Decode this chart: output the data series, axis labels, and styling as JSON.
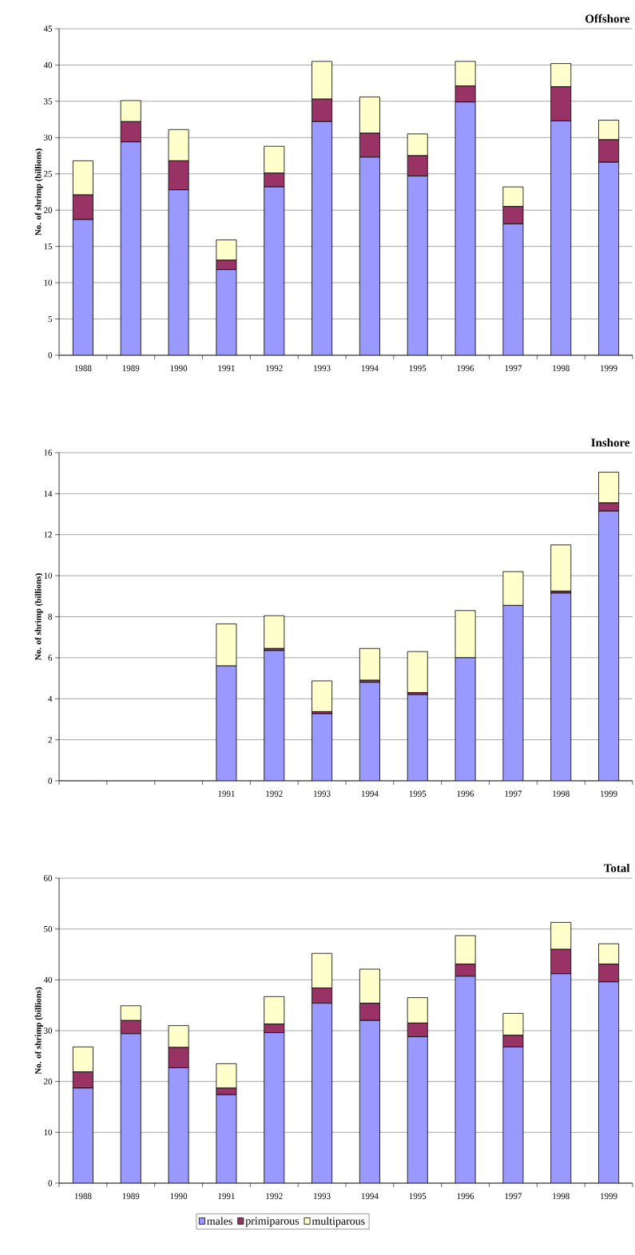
{
  "chart_data": [
    {
      "type": "bar",
      "title": "Offshore",
      "ylabel": "No. of shrimp (billions)",
      "stacked": true,
      "grid": "y",
      "legend": false,
      "categories": [
        "1988",
        "1989",
        "1990",
        "1991",
        "1992",
        "1993",
        "1994",
        "1995",
        "1996",
        "1997",
        "1998",
        "1999"
      ],
      "ylim": [
        0,
        45
      ],
      "yticks": [
        0,
        5,
        10,
        15,
        20,
        25,
        30,
        35,
        40,
        45
      ],
      "series": [
        {
          "color": "#9999ff",
          "values": [
            18.7,
            29.4,
            22.8,
            11.8,
            23.2,
            32.2,
            27.3,
            24.7,
            34.9,
            18.1,
            32.3,
            26.6
          ]
        },
        {
          "color": "#993366",
          "values": [
            3.4,
            2.8,
            4.0,
            1.3,
            1.9,
            3.1,
            3.3,
            2.8,
            2.2,
            2.4,
            4.7,
            3.1
          ]
        },
        {
          "color": "#ffffcc",
          "values": [
            4.7,
            2.9,
            4.3,
            2.8,
            3.7,
            5.2,
            5.0,
            3.0,
            3.4,
            2.7,
            3.2,
            2.7
          ]
        }
      ]
    },
    {
      "type": "bar",
      "title": "Inshore",
      "ylabel": "No. of shrimp (billions)",
      "stacked": true,
      "grid": "y",
      "legend": false,
      "categories": [
        null,
        null,
        null,
        "1991",
        "1992",
        "1993",
        "1994",
        "1995",
        "1996",
        "1997",
        "1998",
        "1999"
      ],
      "ylim": [
        0,
        16
      ],
      "yticks": [
        0,
        2,
        4,
        6,
        8,
        10,
        12,
        14,
        16
      ],
      "series": [
        {
          "color": "#9999ff",
          "values": [
            null,
            null,
            null,
            5.6,
            6.35,
            3.27,
            4.8,
            4.2,
            6.0,
            8.55,
            9.15,
            13.15
          ]
        },
        {
          "color": "#993366",
          "values": [
            null,
            null,
            null,
            0,
            0.1,
            0.1,
            0.1,
            0.1,
            0,
            0,
            0.1,
            0.4
          ]
        },
        {
          "color": "#ffffcc",
          "values": [
            null,
            null,
            null,
            2.05,
            1.6,
            1.5,
            1.55,
            2.0,
            2.3,
            1.65,
            2.25,
            1.5
          ]
        }
      ]
    },
    {
      "type": "bar",
      "title": "Total",
      "ylabel": "No. of shrimp (billions)",
      "stacked": true,
      "grid": "y",
      "legend": "bottom",
      "categories": [
        "1988",
        "1989",
        "1990",
        "1991",
        "1992",
        "1993",
        "1994",
        "1995",
        "1996",
        "1997",
        "1998",
        "1999"
      ],
      "ylim": [
        0,
        60
      ],
      "yticks": [
        0,
        10,
        20,
        30,
        40,
        50,
        60
      ],
      "series": [
        {
          "name": "males",
          "color": "#9999ff",
          "values": [
            18.7,
            29.4,
            22.7,
            17.4,
            29.6,
            35.4,
            32.0,
            28.8,
            40.7,
            26.8,
            41.2,
            39.6
          ]
        },
        {
          "name": "primiparous",
          "color": "#993366",
          "values": [
            3.2,
            2.6,
            4.0,
            1.3,
            1.7,
            3.0,
            3.4,
            2.7,
            2.4,
            2.3,
            4.8,
            3.5
          ]
        },
        {
          "name": "multiparous",
          "color": "#ffffcc",
          "values": [
            4.9,
            2.9,
            4.3,
            4.8,
            5.4,
            6.8,
            6.7,
            5.0,
            5.6,
            4.3,
            5.3,
            4.0
          ]
        }
      ]
    }
  ]
}
